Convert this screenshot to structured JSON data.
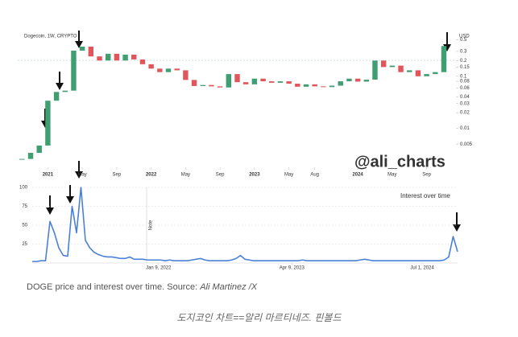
{
  "chart_data": [
    {
      "type": "candlestick",
      "title": "Dogecoin, 1W, CRYPTO",
      "unit": "USD",
      "annotation": "@ali_charts",
      "values": [
        0.0026,
        0.0034,
        0.0047,
        0.034,
        0.05,
        0.053,
        0.31,
        0.37,
        0.24,
        0.2,
        0.27,
        0.2,
        0.26,
        0.21,
        0.17,
        0.14,
        0.12,
        0.14,
        0.13,
        0.085,
        0.065,
        0.068,
        0.064,
        0.061,
        0.11,
        0.077,
        0.07,
        0.09,
        0.08,
        0.075,
        0.08,
        0.072,
        0.063,
        0.07,
        0.064,
        0.062,
        0.066,
        0.08,
        0.09,
        0.079,
        0.086,
        0.2,
        0.15,
        0.16,
        0.12,
        0.13,
        0.1,
        0.11,
        0.12,
        0.38
      ],
      "up_color": "#3f9e72",
      "down_color": "#e0565b",
      "log_scale": true,
      "xlim": [
        -0.5,
        50.5
      ],
      "xticks": [
        {
          "value": 3,
          "label": "2021"
        },
        {
          "value": 7,
          "label": "May"
        },
        {
          "value": 11,
          "label": "Sep"
        },
        {
          "value": 15,
          "label": "2022"
        },
        {
          "value": 19,
          "label": "May"
        },
        {
          "value": 23,
          "label": "Sep"
        },
        {
          "value": 27,
          "label": "2023"
        },
        {
          "value": 31,
          "label": "May"
        },
        {
          "value": 34,
          "label": "Aug"
        },
        {
          "value": 39,
          "label": "2024"
        },
        {
          "value": 43,
          "label": "May"
        },
        {
          "value": 47,
          "label": "Sep"
        }
      ],
      "ylim": [
        0.002,
        0.7
      ],
      "yticks": [
        0.5,
        0.3,
        0.2,
        0.15,
        0.1,
        0.08,
        0.06,
        0.04,
        0.03,
        0.02,
        0.01,
        0.005
      ]
    },
    {
      "type": "line",
      "title": "Interest over time",
      "annotation": "Note",
      "color": "#4a80d6",
      "values": [
        2,
        2,
        3,
        3,
        55,
        40,
        20,
        10,
        9,
        75,
        40,
        100,
        30,
        20,
        14,
        11,
        9,
        8,
        8,
        7,
        6,
        6,
        8,
        5,
        5,
        5,
        4,
        4,
        4,
        4,
        3,
        4,
        3,
        3,
        3,
        3,
        4,
        5,
        6,
        4,
        3,
        3,
        3,
        3,
        3,
        4,
        6,
        10,
        5,
        4,
        3,
        3,
        3,
        3,
        3,
        3,
        3,
        3,
        3,
        3,
        3,
        4,
        3,
        3,
        3,
        3,
        3,
        3,
        3,
        3,
        3,
        3,
        3,
        3,
        4,
        5,
        4,
        3,
        3,
        3,
        3,
        3,
        3,
        3,
        3,
        3,
        3,
        3,
        3,
        3,
        3,
        3,
        3,
        4,
        8,
        35,
        15
      ],
      "xlim": [
        0,
        96
      ],
      "xticks": [
        {
          "value": 28.5,
          "label": "Jan 9, 2022"
        },
        {
          "value": 58.6,
          "label": "Apr 9, 2023"
        },
        {
          "value": 88,
          "label": "Jul 1, 2024"
        }
      ],
      "ylim": [
        0,
        100
      ],
      "yticks": [
        25,
        50,
        75,
        100
      ],
      "grid": true
    }
  ],
  "caption": "DOGE price and interest over time. Source: ",
  "caption_source": "Ali Martinez /X",
  "footer": "도지코인 차트==알리 마르티네즈. 핀볼드"
}
